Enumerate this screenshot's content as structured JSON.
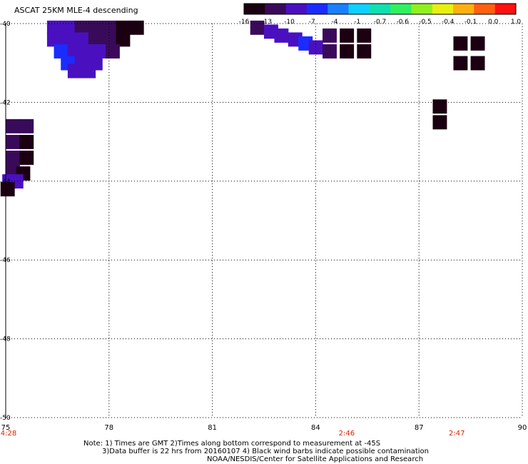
{
  "title": "ASCAT 25KM MLE-4 descending",
  "colorbar": {
    "labels": [
      "-16",
      "-13",
      "-10",
      "-7",
      "-4",
      "-1",
      "-0.7",
      "-0.6",
      "-0.5",
      "-0.4",
      "-0.1",
      "0.0",
      "1.0"
    ],
    "colors": [
      "#1a0010",
      "#3a0a5a",
      "#4a10c0",
      "#1a2cff",
      "#1a80ff",
      "#10d0ff",
      "#10e0b0",
      "#30f060",
      "#90f020",
      "#e8f010",
      "#ffb010",
      "#ff6010",
      "#ff1010"
    ]
  },
  "map": {
    "lon_ticks": [
      "75",
      "78",
      "81",
      "84",
      "87",
      "90"
    ],
    "lat_ticks": [
      "-40",
      "-42",
      "-44",
      "-46",
      "-48",
      "-50"
    ],
    "lon_range": [
      75,
      90
    ],
    "lat_range": [
      -40,
      -50
    ],
    "time_labels": [
      {
        "lon": 75,
        "text": "4:28"
      },
      {
        "lon": 84.9,
        "text": "2:46"
      },
      {
        "lon": 88.1,
        "text": "2:47"
      }
    ],
    "time_color": "#e02000"
  },
  "swath_cells": [
    {
      "lon": 76.4,
      "lat": -40.1,
      "v": -9
    },
    {
      "lon": 76.8,
      "lat": -40.1,
      "v": -9
    },
    {
      "lon": 77.2,
      "lat": -40.1,
      "v": -10
    },
    {
      "lon": 77.6,
      "lat": -40.1,
      "v": -11
    },
    {
      "lon": 78.0,
      "lat": -40.1,
      "v": -12
    },
    {
      "lon": 78.4,
      "lat": -40.1,
      "v": -14
    },
    {
      "lon": 78.8,
      "lat": -40.1,
      "v": -16
    },
    {
      "lon": 76.4,
      "lat": -40.4,
      "v": -7
    },
    {
      "lon": 76.8,
      "lat": -40.4,
      "v": -8
    },
    {
      "lon": 77.2,
      "lat": -40.4,
      "v": -9
    },
    {
      "lon": 77.6,
      "lat": -40.4,
      "v": -10
    },
    {
      "lon": 78.0,
      "lat": -40.4,
      "v": -11
    },
    {
      "lon": 78.4,
      "lat": -40.4,
      "v": -13
    },
    {
      "lon": 76.6,
      "lat": -40.7,
      "v": -6
    },
    {
      "lon": 77.0,
      "lat": -40.7,
      "v": -7
    },
    {
      "lon": 77.4,
      "lat": -40.7,
      "v": -8
    },
    {
      "lon": 77.8,
      "lat": -40.7,
      "v": -9
    },
    {
      "lon": 78.1,
      "lat": -40.7,
      "v": -10
    },
    {
      "lon": 76.8,
      "lat": -41.0,
      "v": -6
    },
    {
      "lon": 77.2,
      "lat": -41.0,
      "v": -7
    },
    {
      "lon": 77.6,
      "lat": -41.0,
      "v": -8
    },
    {
      "lon": 77.0,
      "lat": -41.2,
      "v": -7
    },
    {
      "lon": 77.4,
      "lat": -41.2,
      "v": -7
    },
    {
      "lon": 82.3,
      "lat": -40.1,
      "v": -11
    },
    {
      "lon": 82.7,
      "lat": -40.2,
      "v": -9
    },
    {
      "lon": 83.0,
      "lat": -40.3,
      "v": -8
    },
    {
      "lon": 83.4,
      "lat": -40.4,
      "v": -7
    },
    {
      "lon": 83.7,
      "lat": -40.5,
      "v": -6
    },
    {
      "lon": 84.0,
      "lat": -40.6,
      "v": -9
    },
    {
      "lon": 84.4,
      "lat": -40.3,
      "v": -12
    },
    {
      "lon": 84.9,
      "lat": -40.3,
      "v": -13
    },
    {
      "lon": 85.4,
      "lat": -40.3,
      "v": -13
    },
    {
      "lon": 84.4,
      "lat": -40.7,
      "v": -12
    },
    {
      "lon": 84.9,
      "lat": -40.7,
      "v": -13
    },
    {
      "lon": 85.4,
      "lat": -40.7,
      "v": -13
    },
    {
      "lon": 88.2,
      "lat": -40.5,
      "v": -14
    },
    {
      "lon": 88.7,
      "lat": -40.5,
      "v": -14
    },
    {
      "lon": 88.2,
      "lat": -41.0,
      "v": -14
    },
    {
      "lon": 88.7,
      "lat": -41.0,
      "v": -14
    },
    {
      "lon": 87.6,
      "lat": -42.1,
      "v": -13
    },
    {
      "lon": 87.6,
      "lat": -42.5,
      "v": -13
    },
    {
      "lon": 75.2,
      "lat": -42.6,
      "v": -12
    },
    {
      "lon": 75.6,
      "lat": -42.6,
      "v": -12
    },
    {
      "lon": 75.2,
      "lat": -43.0,
      "v": -12
    },
    {
      "lon": 75.6,
      "lat": -43.0,
      "v": -13
    },
    {
      "lon": 75.2,
      "lat": -43.4,
      "v": -12
    },
    {
      "lon": 75.6,
      "lat": -43.4,
      "v": -14
    },
    {
      "lon": 75.2,
      "lat": -43.7,
      "v": -11
    },
    {
      "lon": 75.5,
      "lat": -43.8,
      "v": -16
    },
    {
      "lon": 75.1,
      "lat": -44.0,
      "v": -9
    },
    {
      "lon": 75.3,
      "lat": -44.0,
      "v": -7
    },
    {
      "lon": 75.05,
      "lat": -44.2,
      "v": -16
    }
  ],
  "notes": [
    "Note: 1) Times are GMT 2)Times along bottom correspond to measurement at -45S",
    "3)Data buffer is 22 hrs from 20160107 4) Black wind barbs indicate possible contamination",
    "NOAA/NESDIS/Center for Satellite Applications and Research"
  ]
}
